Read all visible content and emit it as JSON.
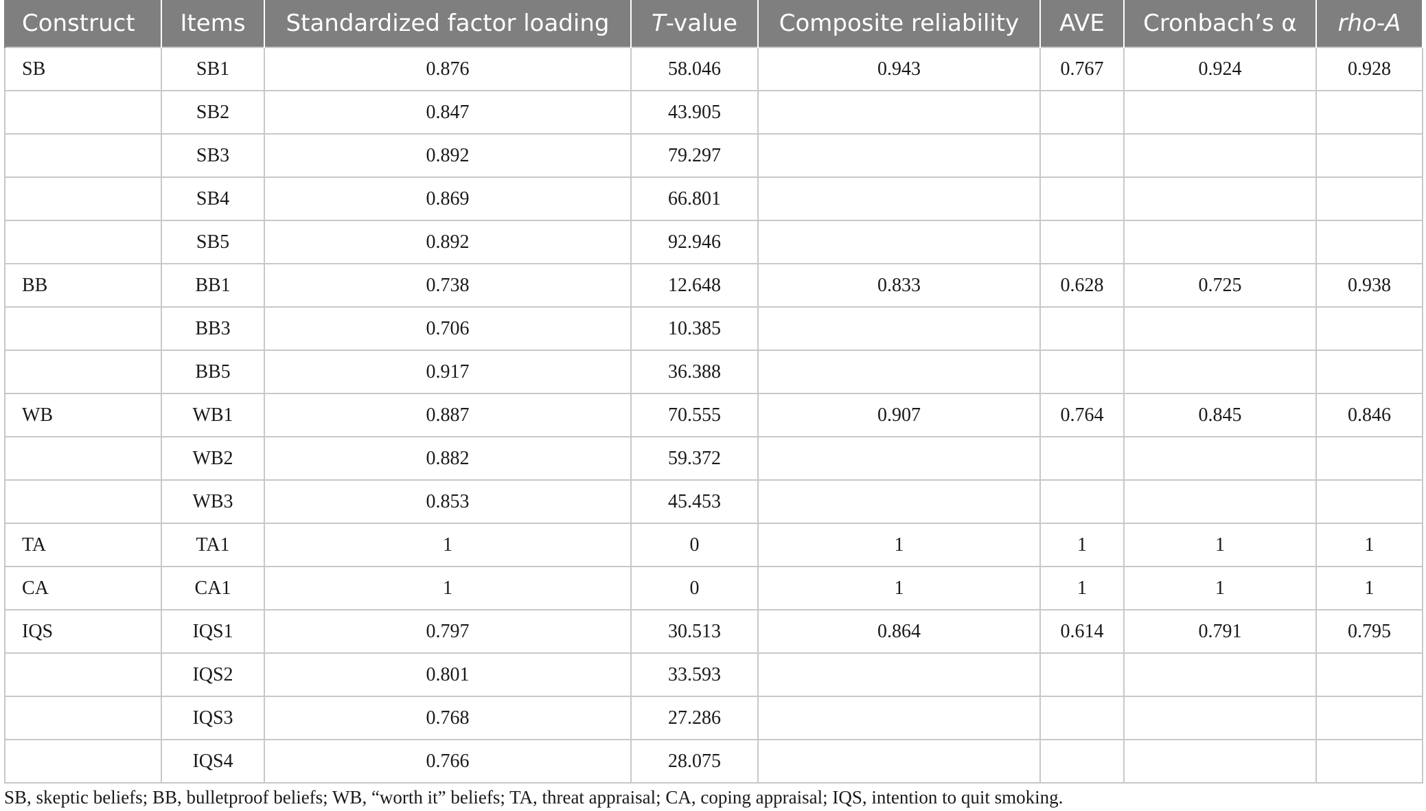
{
  "table": {
    "headers": {
      "construct": "Construct",
      "items": "Items",
      "loading": "Standardized factor loading",
      "tvalue_italic": "T",
      "tvalue_rest": "-value",
      "cr": "Composite reliability",
      "ave": "AVE",
      "alpha": "Cronbach’s α",
      "rho": "rho-A"
    },
    "rows": [
      {
        "construct": "SB",
        "item": "SB1",
        "loading": "0.876",
        "t": "58.046",
        "cr": "0.943",
        "ave": "0.767",
        "alpha": "0.924",
        "rho": "0.928"
      },
      {
        "construct": "",
        "item": "SB2",
        "loading": "0.847",
        "t": "43.905",
        "cr": "",
        "ave": "",
        "alpha": "",
        "rho": ""
      },
      {
        "construct": "",
        "item": "SB3",
        "loading": "0.892",
        "t": "79.297",
        "cr": "",
        "ave": "",
        "alpha": "",
        "rho": ""
      },
      {
        "construct": "",
        "item": "SB4",
        "loading": "0.869",
        "t": "66.801",
        "cr": "",
        "ave": "",
        "alpha": "",
        "rho": ""
      },
      {
        "construct": "",
        "item": "SB5",
        "loading": "0.892",
        "t": "92.946",
        "cr": "",
        "ave": "",
        "alpha": "",
        "rho": ""
      },
      {
        "construct": "BB",
        "item": "BB1",
        "loading": "0.738",
        "t": "12.648",
        "cr": "0.833",
        "ave": "0.628",
        "alpha": "0.725",
        "rho": "0.938"
      },
      {
        "construct": "",
        "item": "BB3",
        "loading": "0.706",
        "t": "10.385",
        "cr": "",
        "ave": "",
        "alpha": "",
        "rho": ""
      },
      {
        "construct": "",
        "item": "BB5",
        "loading": "0.917",
        "t": "36.388",
        "cr": "",
        "ave": "",
        "alpha": "",
        "rho": ""
      },
      {
        "construct": "WB",
        "item": "WB1",
        "loading": "0.887",
        "t": "70.555",
        "cr": "0.907",
        "ave": "0.764",
        "alpha": "0.845",
        "rho": "0.846"
      },
      {
        "construct": "",
        "item": "WB2",
        "loading": "0.882",
        "t": "59.372",
        "cr": "",
        "ave": "",
        "alpha": "",
        "rho": ""
      },
      {
        "construct": "",
        "item": "WB3",
        "loading": "0.853",
        "t": "45.453",
        "cr": "",
        "ave": "",
        "alpha": "",
        "rho": ""
      },
      {
        "construct": "TA",
        "item": "TA1",
        "loading": "1",
        "t": "0",
        "cr": "1",
        "ave": "1",
        "alpha": "1",
        "rho": "1"
      },
      {
        "construct": "CA",
        "item": "CA1",
        "loading": "1",
        "t": "0",
        "cr": "1",
        "ave": "1",
        "alpha": "1",
        "rho": "1"
      },
      {
        "construct": "IQS",
        "item": "IQS1",
        "loading": "0.797",
        "t": "30.513",
        "cr": "0.864",
        "ave": "0.614",
        "alpha": "0.791",
        "rho": "0.795"
      },
      {
        "construct": "",
        "item": "IQS2",
        "loading": "0.801",
        "t": "33.593",
        "cr": "",
        "ave": "",
        "alpha": "",
        "rho": ""
      },
      {
        "construct": "",
        "item": "IQS3",
        "loading": "0.768",
        "t": "27.286",
        "cr": "",
        "ave": "",
        "alpha": "",
        "rho": ""
      },
      {
        "construct": "",
        "item": "IQS4",
        "loading": "0.766",
        "t": "28.075",
        "cr": "",
        "ave": "",
        "alpha": "",
        "rho": ""
      }
    ],
    "footnote": "SB, skeptic beliefs; BB, bulletproof beliefs; WB, “worth it” beliefs; TA, threat appraisal; CA, coping appraisal; IQS, intention to quit smoking."
  }
}
